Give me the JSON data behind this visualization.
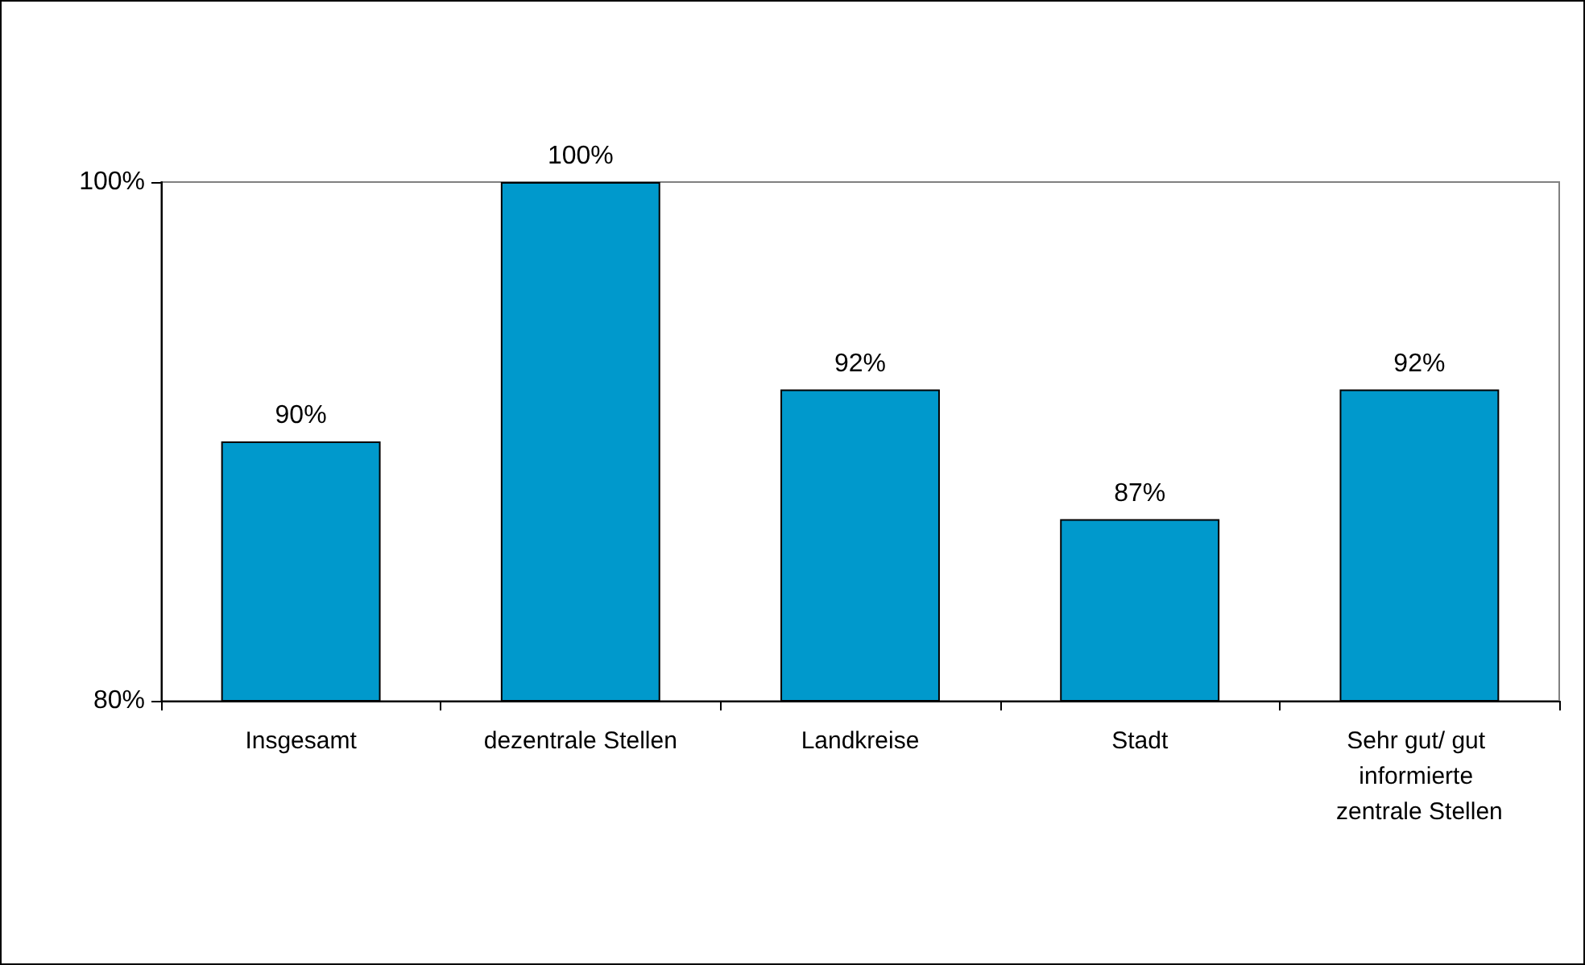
{
  "chart_data": {
    "type": "bar",
    "categories": [
      "Insgesamt",
      "dezentrale Stellen",
      "Landkreise",
      "Stadt",
      "Sehr gut/ gut informierte zentrale Stellen"
    ],
    "values": [
      90,
      100,
      92,
      87,
      92
    ],
    "value_labels": [
      "90%",
      "100%",
      "92%",
      "87%",
      "92%"
    ],
    "color": "#0099cc",
    "ylim": [
      80,
      100
    ],
    "yticks": [
      {
        "value": 80,
        "label": "80%"
      },
      {
        "value": 100,
        "label": "100%"
      }
    ],
    "grid": false
  }
}
